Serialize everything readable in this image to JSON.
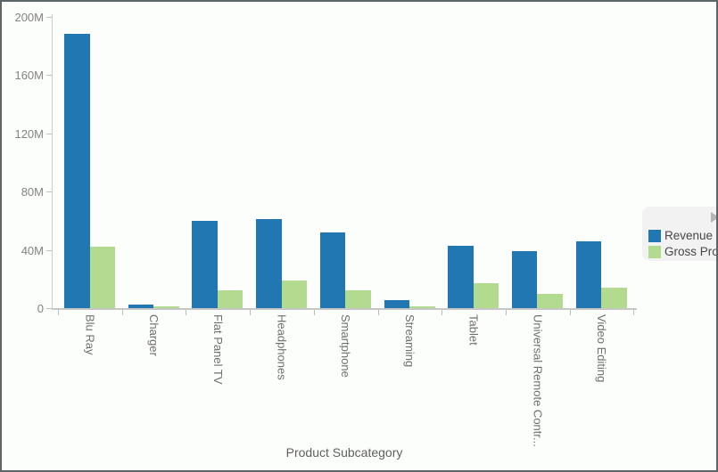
{
  "chart_data": {
    "type": "bar",
    "title": "",
    "xlabel": "Product Subcategory",
    "ylabel": "",
    "values_unit": "millions",
    "ylim_millions": [
      0,
      200
    ],
    "ytick_labels": [
      "0",
      "40M",
      "80M",
      "120M",
      "160M",
      "200M"
    ],
    "grid": false,
    "legend_position": "right",
    "categories": [
      "Blu Ray",
      "Charger",
      "Flat Panel TV",
      "Headphones",
      "Smartphone",
      "Streaming",
      "Tablet",
      "Universal Remote Contr...",
      "Video Editing"
    ],
    "series": [
      {
        "name": "Revenue",
        "color": "#2177b2",
        "values_millions": [
          188,
          2.5,
          60,
          61,
          52,
          5.5,
          43,
          39,
          46
        ]
      },
      {
        "name": "Gross Profit",
        "color": "#b3db90",
        "values_millions": [
          42,
          1.5,
          12,
          19,
          12,
          1,
          17,
          10,
          14
        ]
      }
    ]
  },
  "legend": {
    "collapse_arrow_icon": "right-arrow"
  },
  "colors": {
    "axis_line": "#c9c9c9",
    "background": "#fcfefb",
    "border": "#5d6666"
  }
}
